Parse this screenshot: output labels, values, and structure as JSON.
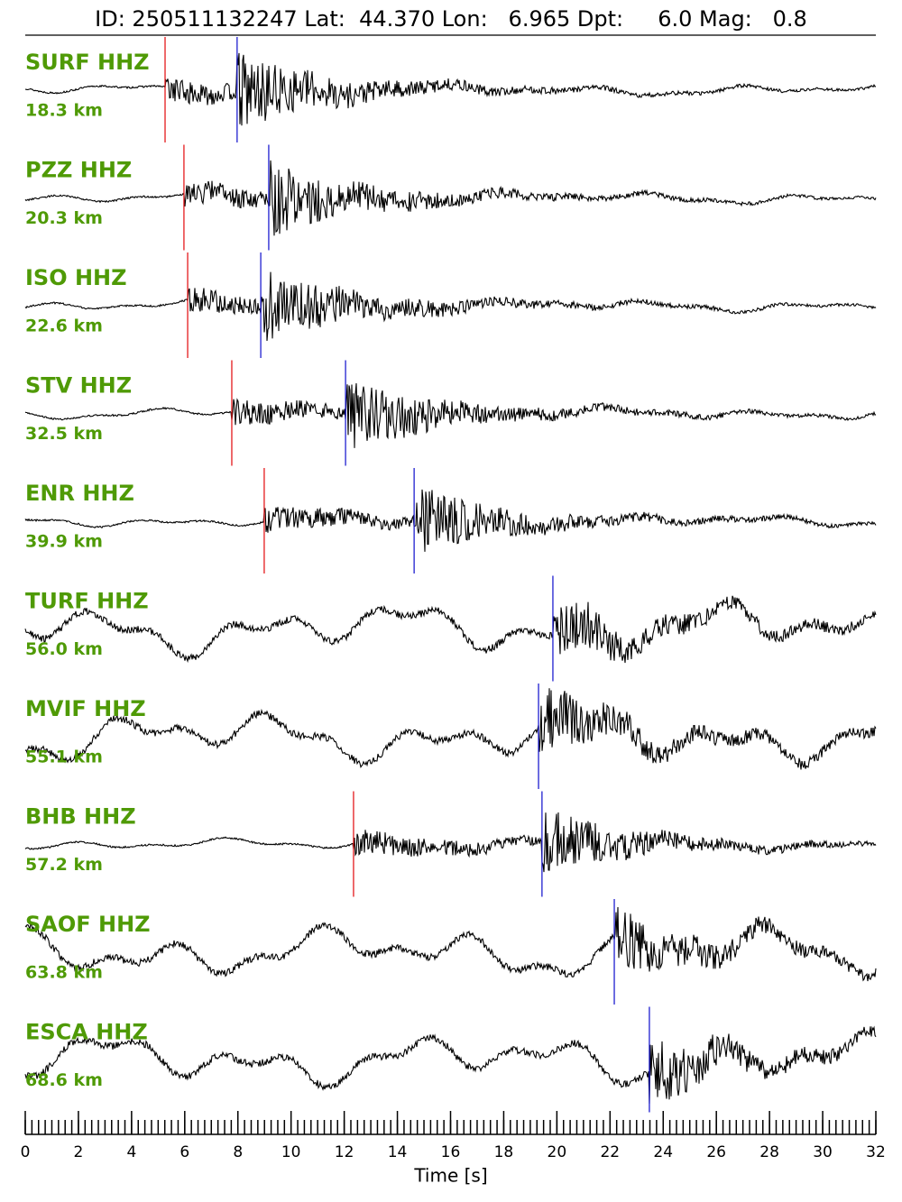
{
  "chart_data": {
    "type": "seismogram",
    "title": "ID: 250511132247 Lat:  44.370 Lon:   6.965 Dpt:     6.0 Mag:   0.8",
    "x_label": "Time [s]",
    "xlim": [
      0,
      32
    ],
    "xticks": [
      0,
      2,
      4,
      6,
      8,
      10,
      12,
      14,
      16,
      18,
      20,
      22,
      24,
      26,
      28,
      30,
      32
    ],
    "xminorticks": [
      0,
      0.25,
      0.5,
      0.75,
      1,
      1.25,
      1.5,
      1.75,
      2,
      2.25,
      2.5,
      2.75,
      3,
      3.25,
      3.5,
      3.75,
      4,
      4.25,
      4.5,
      4.75,
      5,
      5.25,
      5.5,
      5.75,
      6,
      6.25,
      6.5,
      6.75,
      7,
      7.25,
      7.5,
      7.75,
      8,
      8.25,
      8.5,
      8.75,
      9,
      9.25,
      9.5,
      9.75,
      10,
      10.25,
      10.5,
      10.75,
      11,
      11.25,
      11.5,
      11.75,
      12,
      12.25,
      12.5,
      12.75,
      13,
      13.25,
      13.5,
      13.75,
      14,
      14.25,
      14.5,
      14.75,
      15,
      15.25,
      15.5,
      15.75,
      16,
      16.25,
      16.5,
      16.75,
      17,
      17.25,
      17.5,
      17.75,
      18,
      18.25,
      18.5,
      18.75,
      19,
      19.25,
      19.5,
      19.75,
      20,
      20.25,
      20.5,
      20.75,
      21,
      21.25,
      21.5,
      21.75,
      22,
      22.25,
      22.5,
      22.75,
      23,
      23.25,
      23.5,
      23.75,
      24,
      24.25,
      24.5,
      24.75,
      25,
      25.25,
      25.5,
      25.75,
      26,
      26.25,
      26.5,
      26.75,
      27,
      27.25,
      27.5,
      27.75,
      28,
      28.25,
      28.5,
      28.75,
      29,
      29.25,
      29.5,
      29.75,
      30,
      30.25,
      30.5,
      30.75,
      31,
      31.25,
      31.5,
      31.75,
      32
    ],
    "label_color": "#4f9a06",
    "p_color": "#e41a1c",
    "s_color": "#1f1fd0",
    "trace_color": "#000000",
    "traces": [
      {
        "name": "SURF HHZ",
        "distance": "18.3 km",
        "p": 5.26,
        "s": 7.97
      },
      {
        "name": "PZZ HHZ",
        "distance": "20.3 km",
        "p": 5.97,
        "s": 9.16
      },
      {
        "name": "ISO HHZ",
        "distance": "22.6 km",
        "p": 6.11,
        "s": 8.86
      },
      {
        "name": "STV HHZ",
        "distance": "32.5 km",
        "p": 7.77,
        "s": 12.05
      },
      {
        "name": "ENR HHZ",
        "distance": "39.9 km",
        "p": 8.99,
        "s": 14.63
      },
      {
        "name": "TURF HHZ",
        "distance": "56.0 km",
        "p": null,
        "s": 19.85
      },
      {
        "name": "MVIF HHZ",
        "distance": "55.1 km",
        "p": null,
        "s": 19.31
      },
      {
        "name": "BHB HHZ",
        "distance": "57.2 km",
        "p": 12.35,
        "s": 19.44
      },
      {
        "name": "SAOF HHZ",
        "distance": "63.8 km",
        "p": null,
        "s": 22.16
      },
      {
        "name": "ESCA HHZ",
        "distance": "68.6 km",
        "p": null,
        "s": 23.48
      }
    ]
  }
}
